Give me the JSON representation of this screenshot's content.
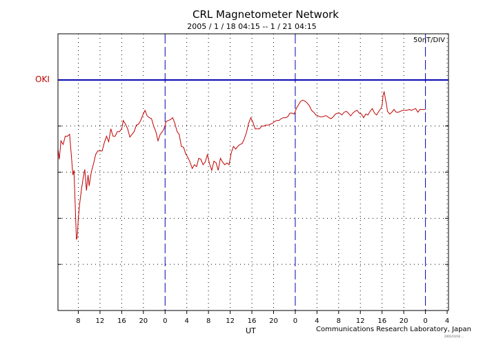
{
  "header": {
    "title": "CRL Magnetometer Network",
    "subtitle": "2005 / 1 / 18   04:15 --  1 / 21   04:15",
    "scale": "50nT/DIV",
    "station": "OKI"
  },
  "footer": {
    "xlabel": "UT",
    "credit": "Communications Research Laboratory, Japan",
    "stamp": "2001/10/16 ..."
  },
  "colors": {
    "trace": "#c00000",
    "baseline": "#0000b0",
    "day_boundary": "#0000b0",
    "grid": "#000000",
    "station_label": "#c00000"
  },
  "chart_data": {
    "type": "line",
    "title": "CRL Magnetometer Network",
    "subtitle": "2005 / 1 / 18   04:15 --  1 / 21   04:15",
    "xlabel": "UT",
    "ylabel": "",
    "scale_label": "50nT/DIV",
    "station": "OKI",
    "x_unit": "hours UT from 2005-01-18 00:00",
    "xlim": [
      4.25,
      76.25
    ],
    "x_ticks": [
      8,
      12,
      16,
      20,
      24,
      28,
      32,
      36,
      40,
      44,
      48,
      52,
      56,
      60,
      64,
      68,
      72,
      76
    ],
    "x_tick_labels": [
      "8",
      "12",
      "16",
      "20",
      "0",
      "4",
      "8",
      "12",
      "16",
      "20",
      "0",
      "4",
      "8",
      "12",
      "16",
      "20",
      "0",
      "4"
    ],
    "day_boundaries": [
      24,
      48,
      72
    ],
    "y_unit": "nT relative to OKI baseline (positive up)",
    "ylim": [
      -250,
      50
    ],
    "y_divisions": [
      50,
      0,
      -50,
      -100,
      -150,
      -200,
      -250
    ],
    "baseline": 0,
    "grid": true,
    "series": [
      {
        "values": [
          [
            4.25,
            -75
          ],
          [
            4.5,
            -86
          ],
          [
            4.8,
            -66
          ],
          [
            5.2,
            -70
          ],
          [
            5.6,
            -61
          ],
          [
            6.0,
            -61
          ],
          [
            6.4,
            -59
          ],
          [
            6.7,
            -81
          ],
          [
            7.0,
            -103
          ],
          [
            7.2,
            -98
          ],
          [
            7.45,
            -140
          ],
          [
            7.65,
            -173
          ],
          [
            7.8,
            -171
          ],
          [
            8.0,
            -150
          ],
          [
            8.3,
            -132
          ],
          [
            8.6,
            -118
          ],
          [
            8.9,
            -106
          ],
          [
            9.2,
            -97
          ],
          [
            9.5,
            -120
          ],
          [
            9.8,
            -103
          ],
          [
            10.0,
            -115
          ],
          [
            10.4,
            -100
          ],
          [
            10.8,
            -91
          ],
          [
            11.2,
            -81
          ],
          [
            11.6,
            -77
          ],
          [
            12.0,
            -77
          ],
          [
            12.4,
            -77
          ],
          [
            12.8,
            -68
          ],
          [
            13.2,
            -61
          ],
          [
            13.6,
            -67
          ],
          [
            14.0,
            -53
          ],
          [
            14.4,
            -61
          ],
          [
            14.8,
            -61
          ],
          [
            15.2,
            -56
          ],
          [
            15.6,
            -56
          ],
          [
            16.0,
            -53
          ],
          [
            16.3,
            -44
          ],
          [
            16.7,
            -48
          ],
          [
            17.1,
            -53
          ],
          [
            17.5,
            -62
          ],
          [
            17.9,
            -59
          ],
          [
            18.3,
            -56
          ],
          [
            18.7,
            -49
          ],
          [
            19.1,
            -48
          ],
          [
            19.5,
            -44
          ],
          [
            19.9,
            -38
          ],
          [
            20.3,
            -33
          ],
          [
            20.7,
            -39
          ],
          [
            21.1,
            -41
          ],
          [
            21.5,
            -42
          ],
          [
            21.9,
            -50
          ],
          [
            22.3,
            -56
          ],
          [
            22.7,
            -66
          ],
          [
            23.1,
            -59
          ],
          [
            23.5,
            -56
          ],
          [
            23.8,
            -53
          ],
          [
            24.2,
            -45
          ],
          [
            24.6,
            -44
          ],
          [
            25.0,
            -43
          ],
          [
            25.4,
            -41
          ],
          [
            25.8,
            -47
          ],
          [
            26.2,
            -56
          ],
          [
            26.6,
            -59
          ],
          [
            27.0,
            -72
          ],
          [
            27.4,
            -73
          ],
          [
            27.8,
            -80
          ],
          [
            28.2,
            -84
          ],
          [
            28.6,
            -89
          ],
          [
            29.0,
            -96
          ],
          [
            29.4,
            -92
          ],
          [
            29.8,
            -94
          ],
          [
            30.2,
            -85
          ],
          [
            30.6,
            -86
          ],
          [
            31.0,
            -92
          ],
          [
            31.4,
            -89
          ],
          [
            31.8,
            -81
          ],
          [
            32.2,
            -91
          ],
          [
            32.6,
            -98
          ],
          [
            33.0,
            -88
          ],
          [
            33.4,
            -90
          ],
          [
            33.8,
            -98
          ],
          [
            34.2,
            -85
          ],
          [
            34.6,
            -89
          ],
          [
            35.0,
            -92
          ],
          [
            35.4,
            -90
          ],
          [
            35.8,
            -92
          ],
          [
            36.2,
            -79
          ],
          [
            36.6,
            -72
          ],
          [
            37.0,
            -75
          ],
          [
            37.4,
            -72
          ],
          [
            37.8,
            -70
          ],
          [
            38.2,
            -69
          ],
          [
            38.6,
            -64
          ],
          [
            39.0,
            -57
          ],
          [
            39.4,
            -47
          ],
          [
            39.8,
            -41
          ],
          [
            40.2,
            -46
          ],
          [
            40.6,
            -53
          ],
          [
            41.0,
            -53
          ],
          [
            41.4,
            -53
          ],
          [
            41.8,
            -50
          ],
          [
            42.2,
            -50
          ],
          [
            42.6,
            -49
          ],
          [
            43.0,
            -49
          ],
          [
            43.4,
            -48
          ],
          [
            43.8,
            -47
          ],
          [
            44.2,
            -45
          ],
          [
            44.6,
            -44
          ],
          [
            45.0,
            -44
          ],
          [
            45.4,
            -42
          ],
          [
            45.8,
            -41
          ],
          [
            46.2,
            -41
          ],
          [
            46.6,
            -40
          ],
          [
            47.0,
            -36
          ],
          [
            47.4,
            -36
          ],
          [
            47.8,
            -37
          ],
          [
            48.2,
            -31
          ],
          [
            48.6,
            -27
          ],
          [
            49.0,
            -23
          ],
          [
            49.4,
            -22
          ],
          [
            49.8,
            -23
          ],
          [
            50.2,
            -25
          ],
          [
            50.6,
            -28
          ],
          [
            51.0,
            -33
          ],
          [
            51.4,
            -35
          ],
          [
            51.8,
            -38
          ],
          [
            52.2,
            -39
          ],
          [
            52.6,
            -40
          ],
          [
            53.0,
            -40
          ],
          [
            53.4,
            -39
          ],
          [
            53.8,
            -39
          ],
          [
            54.2,
            -41
          ],
          [
            54.6,
            -42
          ],
          [
            55.0,
            -40
          ],
          [
            55.4,
            -37
          ],
          [
            55.8,
            -36
          ],
          [
            56.2,
            -36
          ],
          [
            56.6,
            -38
          ],
          [
            57.0,
            -35
          ],
          [
            57.4,
            -34
          ],
          [
            57.8,
            -36
          ],
          [
            58.2,
            -39
          ],
          [
            58.6,
            -36
          ],
          [
            59.0,
            -34
          ],
          [
            59.4,
            -33
          ],
          [
            59.8,
            -36
          ],
          [
            60.2,
            -37
          ],
          [
            60.6,
            -41
          ],
          [
            61.0,
            -37
          ],
          [
            61.4,
            -38
          ],
          [
            61.8,
            -34
          ],
          [
            62.2,
            -31
          ],
          [
            62.6,
            -36
          ],
          [
            63.0,
            -38
          ],
          [
            63.4,
            -34
          ],
          [
            63.8,
            -31
          ],
          [
            64.0,
            -28
          ],
          [
            64.2,
            -16
          ],
          [
            64.4,
            -13
          ],
          [
            64.6,
            -20
          ],
          [
            64.8,
            -26
          ],
          [
            65.0,
            -34
          ],
          [
            65.4,
            -37
          ],
          [
            65.8,
            -35
          ],
          [
            66.2,
            -32
          ],
          [
            66.6,
            -35
          ],
          [
            67.0,
            -35
          ],
          [
            67.4,
            -34
          ],
          [
            67.8,
            -33
          ],
          [
            68.2,
            -33
          ],
          [
            68.6,
            -33
          ],
          [
            69.0,
            -32
          ],
          [
            69.4,
            -33
          ],
          [
            69.8,
            -32
          ],
          [
            70.2,
            -31
          ],
          [
            70.6,
            -35
          ],
          [
            71.0,
            -32
          ],
          [
            71.4,
            -32
          ],
          [
            72.0,
            -32
          ]
        ]
      }
    ]
  }
}
